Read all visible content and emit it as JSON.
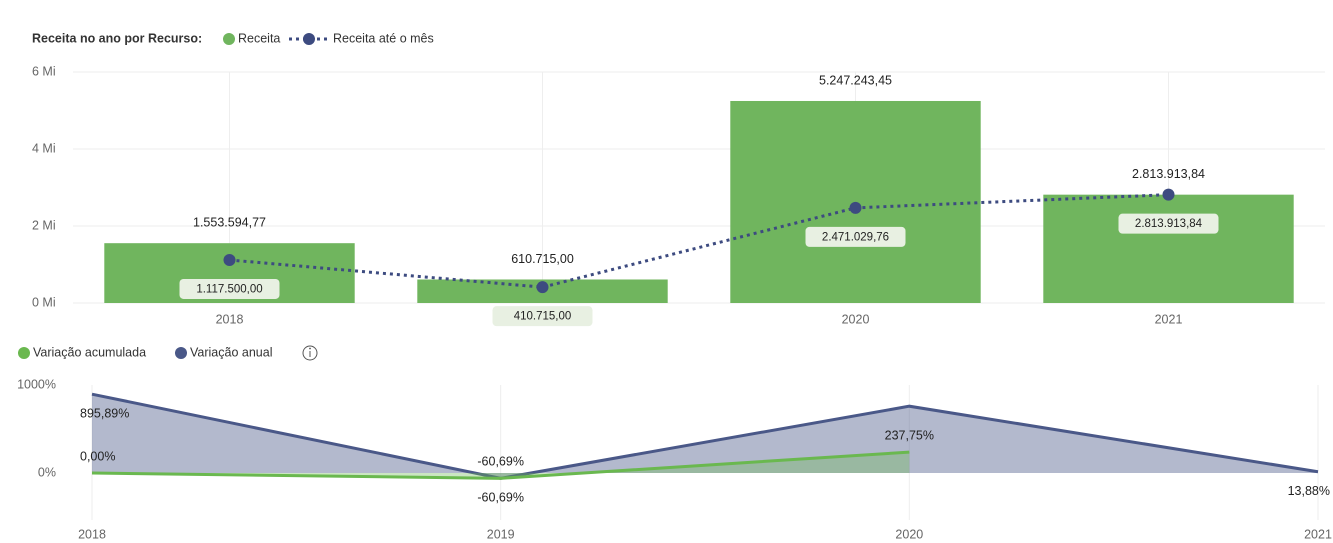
{
  "chart_data": [
    {
      "type": "combo",
      "title": "Receita no ano por Recurso:",
      "categories": [
        "2018",
        "2019",
        "2020",
        "2021"
      ],
      "ylim": [
        0,
        6000000
      ],
      "yticks": [
        {
          "value": 0,
          "label": "0 Mi"
        },
        {
          "value": 2000000,
          "label": "2 Mi"
        },
        {
          "value": 4000000,
          "label": "4 Mi"
        },
        {
          "value": 6000000,
          "label": "6 Mi"
        }
      ],
      "grid": true,
      "series": [
        {
          "name": "Receita",
          "type": "bar",
          "color": "#70b55e",
          "values": [
            1553594.77,
            610715.0,
            5247243.45,
            2813913.84
          ],
          "value_labels": [
            "1.553.594,77",
            "610.715,00",
            "5.247.243,45",
            "2.813.913,84"
          ]
        },
        {
          "name": "Receita até o mês",
          "type": "line",
          "color": "#3d4b80",
          "values": [
            1117500.0,
            410715.0,
            2471029.76,
            2813913.84
          ],
          "value_labels": [
            "1.117.500,00",
            "410.715,00",
            "2.471.029,76",
            "2.813.913,84"
          ]
        }
      ]
    },
    {
      "type": "area",
      "categories": [
        "2018",
        "2019",
        "2020",
        "2021"
      ],
      "ylim": [
        -400,
        1000
      ],
      "yticks": [
        {
          "value": 0,
          "label": "0%"
        },
        {
          "value": 1000,
          "label": "1000%"
        }
      ],
      "series": [
        {
          "name": "Variação acumulada",
          "color": "#6ab84f",
          "values": [
            0.0,
            -60.69,
            237.75,
            null
          ],
          "value_labels": [
            "0,00%",
            "-60,69%",
            "237,75%",
            null
          ]
        },
        {
          "name": "Variação anual",
          "color": "#4a5888",
          "values": [
            895.89,
            -60.69,
            759,
            13.88
          ],
          "value_labels": [
            "895,89%",
            "-60,69%",
            null,
            "13,88%"
          ]
        }
      ]
    }
  ]
}
